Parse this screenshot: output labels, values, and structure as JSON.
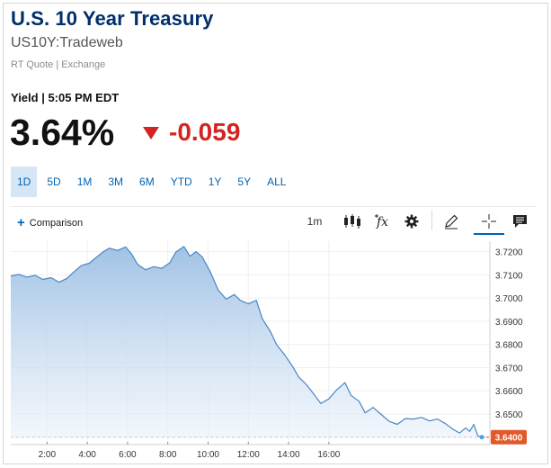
{
  "header": {
    "title": "U.S. 10 Year Treasury",
    "symbol": "US10Y:Tradeweb",
    "quote_type": "RT Quote | Exchange"
  },
  "quote": {
    "yield_time": "Yield | 5:05 PM EDT",
    "last": "3.64%",
    "change": "-0.059",
    "direction": "down",
    "change_color": "#d32422"
  },
  "ranges": [
    "1D",
    "5D",
    "1M",
    "3M",
    "6M",
    "YTD",
    "1Y",
    "5Y",
    "ALL"
  ],
  "active_range": "1D",
  "toolbar": {
    "comparison_label": "Comparison",
    "interval": "1m",
    "icons": [
      "candlestick-icon",
      "indicators-fx-icon",
      "settings-icon",
      "draw-pencil-icon",
      "crosshair-icon",
      "comment-icon"
    ]
  },
  "chart_data": {
    "type": "area",
    "title": "",
    "xlabel": "",
    "ylabel": "",
    "x_ticks": [
      "2:00",
      "4:00",
      "6:00",
      "8:00",
      "10:00",
      "12:00",
      "14:00",
      "16:00"
    ],
    "y_ticks": [
      "3.7200",
      "3.7100",
      "3.7000",
      "3.6900",
      "3.6800",
      "3.6700",
      "3.6600",
      "3.6500"
    ],
    "ylim": [
      3.6395,
      3.7245
    ],
    "xlim_hours": [
      0.2,
      24
    ],
    "last_value_label": "3.6400",
    "last_value": 3.64,
    "line_color": "#4a86c5",
    "marker_color": "#e05a2a",
    "series": [
      {
        "values": [
          [
            0.2,
            3.7095
          ],
          [
            0.6,
            3.7102
          ],
          [
            1.0,
            3.709
          ],
          [
            1.4,
            3.7098
          ],
          [
            1.8,
            3.708
          ],
          [
            2.2,
            3.7088
          ],
          [
            2.6,
            3.7068
          ],
          [
            3.0,
            3.7085
          ],
          [
            3.3,
            3.711
          ],
          [
            3.7,
            3.714
          ],
          [
            4.1,
            3.715
          ],
          [
            4.4,
            3.7172
          ],
          [
            4.8,
            3.72
          ],
          [
            5.1,
            3.7215
          ],
          [
            5.5,
            3.7205
          ],
          [
            5.9,
            3.722
          ],
          [
            6.2,
            3.719
          ],
          [
            6.5,
            3.7145
          ],
          [
            6.9,
            3.7122
          ],
          [
            7.3,
            3.7135
          ],
          [
            7.7,
            3.7128
          ],
          [
            8.1,
            3.7152
          ],
          [
            8.4,
            3.7198
          ],
          [
            8.8,
            3.7222
          ],
          [
            9.1,
            3.718
          ],
          [
            9.4,
            3.72
          ],
          [
            9.7,
            3.7178
          ],
          [
            10.1,
            3.7115
          ],
          [
            10.5,
            3.7035
          ],
          [
            10.9,
            3.6995
          ],
          [
            11.3,
            3.7015
          ],
          [
            11.6,
            3.699
          ],
          [
            12.0,
            3.6975
          ],
          [
            12.4,
            3.699
          ],
          [
            12.7,
            3.691
          ],
          [
            13.1,
            3.6855
          ],
          [
            13.4,
            3.68
          ],
          [
            13.8,
            3.6755
          ],
          [
            14.2,
            3.6705
          ],
          [
            14.5,
            3.666
          ],
          [
            14.9,
            3.6625
          ],
          [
            15.3,
            3.658
          ],
          [
            15.6,
            3.6545
          ],
          [
            16.0,
            3.6565
          ],
          [
            16.4,
            3.6605
          ],
          [
            16.8,
            3.6635
          ],
          [
            17.1,
            3.658
          ],
          [
            17.5,
            3.6555
          ],
          [
            17.8,
            3.6505
          ],
          [
            18.2,
            3.6528
          ],
          [
            18.6,
            3.6498
          ],
          [
            19.0,
            3.6468
          ],
          [
            19.4,
            3.6455
          ],
          [
            19.8,
            3.648
          ],
          [
            20.2,
            3.6478
          ],
          [
            20.6,
            3.6485
          ],
          [
            21.0,
            3.647
          ],
          [
            21.4,
            3.6478
          ],
          [
            21.8,
            3.6458
          ],
          [
            22.2,
            3.6432
          ],
          [
            22.5,
            3.6418
          ],
          [
            22.8,
            3.644
          ],
          [
            23.0,
            3.6425
          ],
          [
            23.2,
            3.6455
          ],
          [
            23.4,
            3.6405
          ],
          [
            23.6,
            3.64
          ]
        ]
      }
    ]
  }
}
